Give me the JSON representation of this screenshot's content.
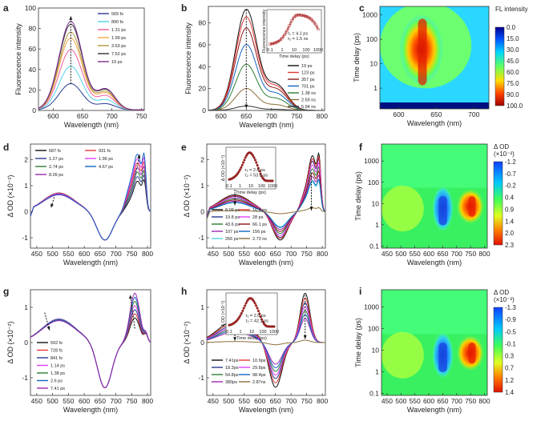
{
  "chart_data": [
    {
      "panel": "a",
      "type": "line",
      "xlabel": "Wavelength (nm)",
      "ylabel": "Fluorescence intensity",
      "xlim": [
        575,
        755
      ],
      "ylim": [
        0,
        100
      ],
      "xticks": [
        600,
        650,
        700,
        750
      ],
      "yticks": [
        0,
        20,
        40,
        60,
        80,
        100
      ],
      "peak": 630,
      "arrow": "up",
      "series": [
        {
          "name": "565 fs",
          "color": "#2b3990",
          "values": [
            27
          ]
        },
        {
          "name": "890 fs",
          "color": "#4fd3e8",
          "values": [
            45
          ]
        },
        {
          "name": "1.31 ps",
          "color": "#f05a9a",
          "values": [
            62
          ]
        },
        {
          "name": "1.99 ps",
          "color": "#f7a64a",
          "values": [
            74
          ]
        },
        {
          "name": "3.63 ps",
          "color": "#b0963d",
          "values": [
            80
          ]
        },
        {
          "name": "7.52 ps",
          "color": "#333333",
          "values": [
            88
          ]
        },
        {
          "name": "19 ps",
          "color": "#7b2c8f",
          "values": [
            91
          ]
        }
      ]
    },
    {
      "panel": "b",
      "type": "line",
      "xlabel": "Wavelength (nm)",
      "ylabel": "Fluorescence intensity",
      "xlim": [
        575,
        805
      ],
      "ylim": [
        0,
        95
      ],
      "xticks": [
        600,
        650,
        700,
        750,
        800
      ],
      "yticks": [
        0,
        20,
        40,
        60,
        80
      ],
      "peak": 650,
      "arrow": "down",
      "series": [
        {
          "name": "19 ps",
          "color": "#111111",
          "values": [
            92
          ]
        },
        {
          "name": "123 ps",
          "color": "#e53935",
          "values": [
            85
          ]
        },
        {
          "name": "357 ps",
          "color": "#8b1a1a",
          "values": [
            75
          ]
        },
        {
          "name": "701 ps",
          "color": "#1565c0",
          "values": [
            60
          ]
        },
        {
          "name": "1.38 ns",
          "color": "#2e7d32",
          "values": [
            42
          ]
        },
        {
          "name": "2.59 ns",
          "color": "#8d6e3a",
          "values": [
            20
          ]
        },
        {
          "name": "5.94 ns",
          "color": "#333333",
          "values": [
            4
          ]
        }
      ],
      "inset": {
        "xlabel": "Time delay (ps)",
        "ylabel": "Fluorescence intensity",
        "text1": "τ₁ = 4.1 ps",
        "text2": "τ₂ = 1.5 ns",
        "xticks": [
          "0.1",
          "1",
          "10",
          "100",
          "1000"
        ]
      }
    },
    {
      "panel": "c",
      "type": "heatmap",
      "xlabel": "Wavelength (nm)",
      "ylabel": "Time delay (ps)",
      "xlim": [
        575,
        720
      ],
      "xticks": [
        600,
        650,
        700
      ],
      "yticks": [
        "1",
        "10",
        "100",
        "1000"
      ],
      "colorbar_title": "FL intensity",
      "colorbar_ticks": [
        "0.0",
        "15.0",
        "30.0",
        "45.0",
        "60.0",
        "75.0",
        "90.0",
        "100.0"
      ]
    },
    {
      "panel": "d",
      "type": "line",
      "xlabel": "Wavelength (nm)",
      "ylabel": "Δ OD (×10⁻²)",
      "xlim": [
        430,
        810
      ],
      "ylim": [
        -1.4,
        2.6
      ],
      "xticks": [
        450,
        500,
        550,
        600,
        650,
        700,
        750,
        800
      ],
      "yticks": [
        -1,
        0,
        1,
        2
      ],
      "series": [
        {
          "name": "687 fs",
          "color": "#111111",
          "values": [
            0.8
          ]
        },
        {
          "name": "1.27 ps",
          "color": "#2b3990",
          "values": [
            0.78
          ]
        },
        {
          "name": "2.74 ps",
          "color": "#2e7d32",
          "values": [
            0.75
          ]
        },
        {
          "name": "8.09 ps",
          "color": "#9c27b0",
          "values": [
            0.72
          ]
        },
        {
          "name": "931 fs",
          "color": "#e53935",
          "values": [
            0.79
          ]
        },
        {
          "name": "1.96 ps",
          "color": "#e040fb",
          "values": [
            0.77
          ]
        },
        {
          "name": "4.67 ps",
          "color": "#1565c0",
          "values": [
            0.74
          ]
        }
      ]
    },
    {
      "panel": "e",
      "type": "line",
      "xlabel": "Wavelength (nm)",
      "ylabel": "Δ OD (×10⁻²)",
      "xlim": [
        430,
        810
      ],
      "ylim": [
        -1.4,
        2.6
      ],
      "xticks": [
        450,
        500,
        550,
        600,
        650,
        700,
        750,
        800
      ],
      "yticks": [
        -1,
        0,
        1,
        2
      ],
      "series": [
        {
          "name": "8.09 ps",
          "color": "#111111",
          "values": [
            0.72
          ]
        },
        {
          "name": "19.8 ps",
          "color": "#2b3990",
          "values": [
            0.65
          ]
        },
        {
          "name": "43.6 ps",
          "color": "#2e7d32",
          "values": [
            0.55
          ]
        },
        {
          "name": "107 ps",
          "color": "#9c27b0",
          "values": [
            0.45
          ]
        },
        {
          "name": "266 ps",
          "color": "#4fd3e8",
          "values": [
            0.38
          ]
        },
        {
          "name": "16.4 ps",
          "color": "#e53935",
          "values": [
            0.68
          ]
        },
        {
          "name": "28 ps",
          "color": "#e040fb",
          "values": [
            0.6
          ]
        },
        {
          "name": "66.1 ps",
          "color": "#8b1a1a",
          "values": [
            0.5
          ]
        },
        {
          "name": "156 ps",
          "color": "#1565c0",
          "values": [
            0.4
          ]
        },
        {
          "name": "2.73 ns",
          "color": "#8d6e3a",
          "values": [
            0.05
          ]
        }
      ],
      "inset": {
        "xlabel": "Time delay (ps)",
        "ylabel": "Δ OD (×10⁻²)",
        "text1": "τ₁ = 2.6 ps",
        "text2": "τ₂ = 53.8 ps",
        "xticks": [
          "0.1",
          "1",
          "10",
          "100",
          "1000"
        ]
      }
    },
    {
      "panel": "f",
      "type": "heatmap",
      "xlabel": "Wavelength (nm)",
      "ylabel": "Time delay (ps)",
      "xticks": [
        450,
        500,
        550,
        600,
        650,
        700,
        750,
        800
      ],
      "yticks": [
        "0.1",
        "1",
        "10",
        "100",
        "1000"
      ],
      "colorbar_title": "Δ OD",
      "colorbar_unit": "(×10⁻²)",
      "colorbar_ticks": [
        "-1.2",
        "-0.7",
        "-0.2",
        "0.4",
        "0.9",
        "1.4",
        "2.0",
        "2.3"
      ]
    },
    {
      "panel": "g",
      "type": "line",
      "xlabel": "Wavelength (nm)",
      "ylabel": "Δ OD (×10⁻²)",
      "xlim": [
        430,
        810
      ],
      "ylim": [
        -1.5,
        1.5
      ],
      "xticks": [
        450,
        500,
        550,
        600,
        650,
        700,
        750,
        800
      ],
      "yticks": [
        -1,
        0,
        1
      ],
      "series": [
        {
          "name": "592 fs",
          "color": "#111111",
          "values": [
            0.65
          ]
        },
        {
          "name": "728 fs",
          "color": "#e53935",
          "values": [
            0.66
          ]
        },
        {
          "name": "841 fs",
          "color": "#2b3990",
          "values": [
            0.67
          ]
        },
        {
          "name": "1.14 ps",
          "color": "#e040fb",
          "values": [
            0.66
          ]
        },
        {
          "name": "1.38 ps",
          "color": "#2e7d32",
          "values": [
            0.65
          ]
        },
        {
          "name": "2.6 ps",
          "color": "#1565c0",
          "values": [
            0.64
          ]
        },
        {
          "name": "7.41 ps",
          "color": "#9c27b0",
          "values": [
            0.62
          ]
        }
      ]
    },
    {
      "panel": "h",
      "type": "line",
      "xlabel": "Wavelength (nm)",
      "ylabel": "Δ OD (×10⁻²)",
      "xlim": [
        430,
        810
      ],
      "ylim": [
        -1.5,
        1.5
      ],
      "xticks": [
        450,
        500,
        550,
        600,
        650,
        700,
        750,
        800
      ],
      "yticks": [
        -1,
        0,
        1
      ],
      "series": [
        {
          "name": "7.41ps",
          "color": "#111111",
          "values": [
            0.62
          ]
        },
        {
          "name": "18.3ps",
          "color": "#2b3990",
          "values": [
            0.5
          ]
        },
        {
          "name": "54.8ps",
          "color": "#2e7d32",
          "values": [
            0.4
          ]
        },
        {
          "name": "380ps",
          "color": "#9c27b0",
          "values": [
            0.3
          ]
        },
        {
          "name": "10.9ps",
          "color": "#e53935",
          "values": [
            0.56
          ]
        },
        {
          "name": "29.8ps",
          "color": "#e040fb",
          "values": [
            0.45
          ]
        },
        {
          "name": "98.4ps",
          "color": "#1565c0",
          "values": [
            0.35
          ]
        },
        {
          "name": "2.87ns",
          "color": "#8d6e3a",
          "values": [
            0.03
          ]
        }
      ],
      "inset": {
        "xlabel": "Time delay (ps)",
        "ylabel": "Δ OD (×10⁻²)",
        "text1": "τ₁ = 2.0 ps",
        "text2": "τ₂ = 42.1 ps",
        "xticks": [
          "0.1",
          "1",
          "10",
          "100",
          "1000"
        ]
      }
    },
    {
      "panel": "i",
      "type": "heatmap",
      "xlabel": "Wavelength (nm)",
      "ylabel": "Time delay (ps)",
      "xticks": [
        450,
        500,
        550,
        600,
        650,
        700,
        750,
        800
      ],
      "yticks": [
        "0.1",
        "1",
        "10",
        "100",
        "1000"
      ],
      "colorbar_title": "Δ OD",
      "colorbar_unit": "(×10⁻²)",
      "colorbar_ticks": [
        "-1.3",
        "-0.9",
        "-0.5",
        "-0.1",
        "0.3",
        "0.7",
        "1.2",
        "1.4"
      ]
    }
  ]
}
